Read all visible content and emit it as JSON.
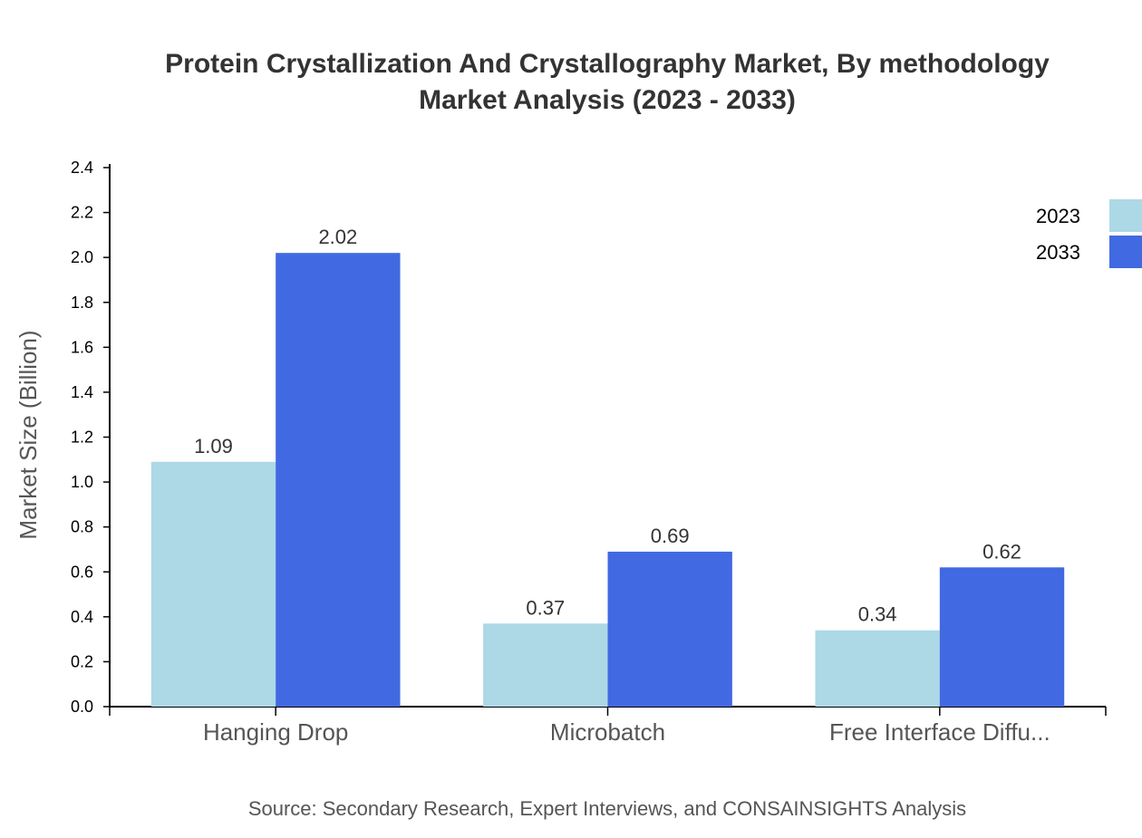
{
  "chart_data": {
    "type": "bar",
    "title_lines": [
      "Protein Crystallization And Crystallography Market, By methodology",
      "Market Analysis (2023 - 2033)"
    ],
    "xlabel": "",
    "ylabel": "Market Size (Billion)",
    "ylim": [
      0,
      2.4
    ],
    "yticks": [
      "0.0",
      "0.2",
      "0.4",
      "0.6",
      "0.8",
      "1.0",
      "1.2",
      "1.4",
      "1.6",
      "1.8",
      "2.0",
      "2.2",
      "2.4"
    ],
    "categories": [
      "Hanging Drop",
      "Microbatch",
      "Free Interface Diffu..."
    ],
    "series": [
      {
        "name": "2023",
        "color": "#add8e6",
        "values": [
          1.09,
          0.37,
          0.34
        ]
      },
      {
        "name": "2033",
        "color": "#4169e1",
        "values": [
          2.02,
          0.69,
          0.62
        ]
      }
    ],
    "legend_position": "top-right",
    "grid": false,
    "source": "Source: Secondary Research, Expert Interviews, and CONSAINSIGHTS Analysis"
  }
}
